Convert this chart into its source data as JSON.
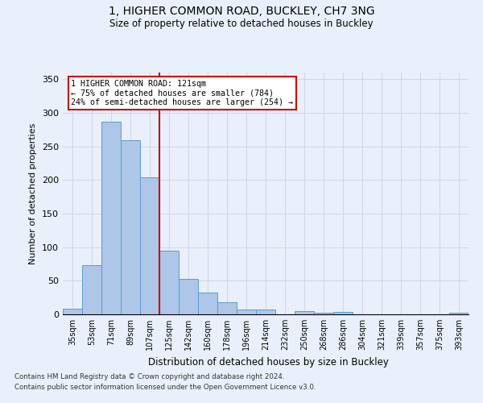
{
  "title1": "1, HIGHER COMMON ROAD, BUCKLEY, CH7 3NG",
  "title2": "Size of property relative to detached houses in Buckley",
  "xlabel": "Distribution of detached houses by size in Buckley",
  "ylabel": "Number of detached properties",
  "footer1": "Contains HM Land Registry data © Crown copyright and database right 2024.",
  "footer2": "Contains public sector information licensed under the Open Government Licence v3.0.",
  "bin_labels": [
    "35sqm",
    "53sqm",
    "71sqm",
    "89sqm",
    "107sqm",
    "125sqm",
    "142sqm",
    "160sqm",
    "178sqm",
    "196sqm",
    "214sqm",
    "232sqm",
    "250sqm",
    "268sqm",
    "286sqm",
    "304sqm",
    "321sqm",
    "339sqm",
    "357sqm",
    "375sqm",
    "393sqm"
  ],
  "bar_values": [
    8,
    73,
    287,
    259,
    204,
    95,
    53,
    32,
    18,
    7,
    7,
    0,
    5,
    3,
    4,
    0,
    0,
    0,
    0,
    0,
    2
  ],
  "bar_color": "#aec6e8",
  "bar_edge_color": "#5b9bd5",
  "grid_color": "#d0d8e8",
  "background_color": "#eaf0fb",
  "vline_x": 4.5,
  "vline_color": "#cc0000",
  "annotation_text": "1 HIGHER COMMON ROAD: 121sqm\n← 75% of detached houses are smaller (784)\n24% of semi-detached houses are larger (254) →",
  "annotation_box_color": "#ffffff",
  "annotation_box_edge": "#cc0000",
  "ylim": [
    0,
    360
  ],
  "yticks": [
    0,
    50,
    100,
    150,
    200,
    250,
    300,
    350
  ]
}
